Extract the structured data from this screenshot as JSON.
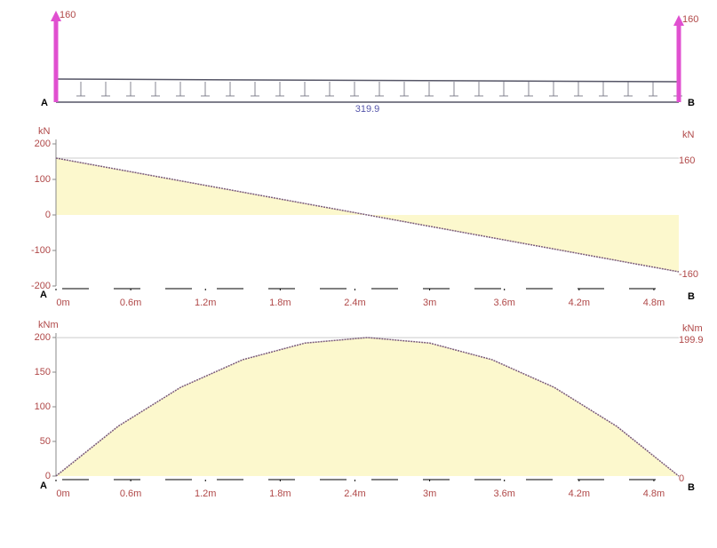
{
  "chart_data": [
    {
      "type": "beam",
      "supports": [
        "A",
        "B"
      ],
      "reactions": [
        160,
        160
      ],
      "load": 319.9,
      "color": "#e050d0"
    },
    {
      "type": "area",
      "unit": "kN",
      "supports": [
        "A",
        "B"
      ],
      "x": [
        0,
        5
      ],
      "values": [
        160,
        -160
      ],
      "xlim": [
        0,
        5
      ],
      "ylim": [
        -200,
        200
      ],
      "xticks": [
        {
          "value": 0,
          "label": "0m"
        },
        {
          "value": 0.6,
          "label": "0.6m"
        },
        {
          "value": 1.2,
          "label": "1.2m"
        },
        {
          "value": 1.8,
          "label": "1.8m"
        },
        {
          "value": 2.4,
          "label": "2.4m"
        },
        {
          "value": 3,
          "label": "3m"
        },
        {
          "value": 3.6,
          "label": "3.6m"
        },
        {
          "value": 4.2,
          "label": "4.2m"
        },
        {
          "value": 4.8,
          "label": "4.8m"
        }
      ],
      "yticks": [
        -200,
        -100,
        0,
        100,
        200
      ],
      "color": "#fbf6c0"
    },
    {
      "type": "area",
      "unit": "kNm",
      "supports": [
        "A",
        "B"
      ],
      "x": [
        0,
        0.5,
        1,
        1.5,
        2,
        2.5,
        3,
        3.5,
        4,
        4.5,
        5
      ],
      "values": [
        0,
        72,
        128,
        168,
        192,
        199.9,
        192,
        168,
        128,
        72,
        0
      ],
      "xlim": [
        0,
        5
      ],
      "ylim": [
        0,
        200
      ],
      "xticks": [
        {
          "value": 0,
          "label": "0m"
        },
        {
          "value": 0.6,
          "label": "0.6m"
        },
        {
          "value": 1.2,
          "label": "1.2m"
        },
        {
          "value": 1.8,
          "label": "1.8m"
        },
        {
          "value": 2.4,
          "label": "2.4m"
        },
        {
          "value": 3,
          "label": "3m"
        },
        {
          "value": 3.6,
          "label": "3.6m"
        },
        {
          "value": 4.2,
          "label": "4.2m"
        },
        {
          "value": 4.8,
          "label": "4.8m"
        }
      ],
      "yticks": [
        0,
        50,
        100,
        150,
        200
      ],
      "color": "#fbf6c0"
    }
  ]
}
